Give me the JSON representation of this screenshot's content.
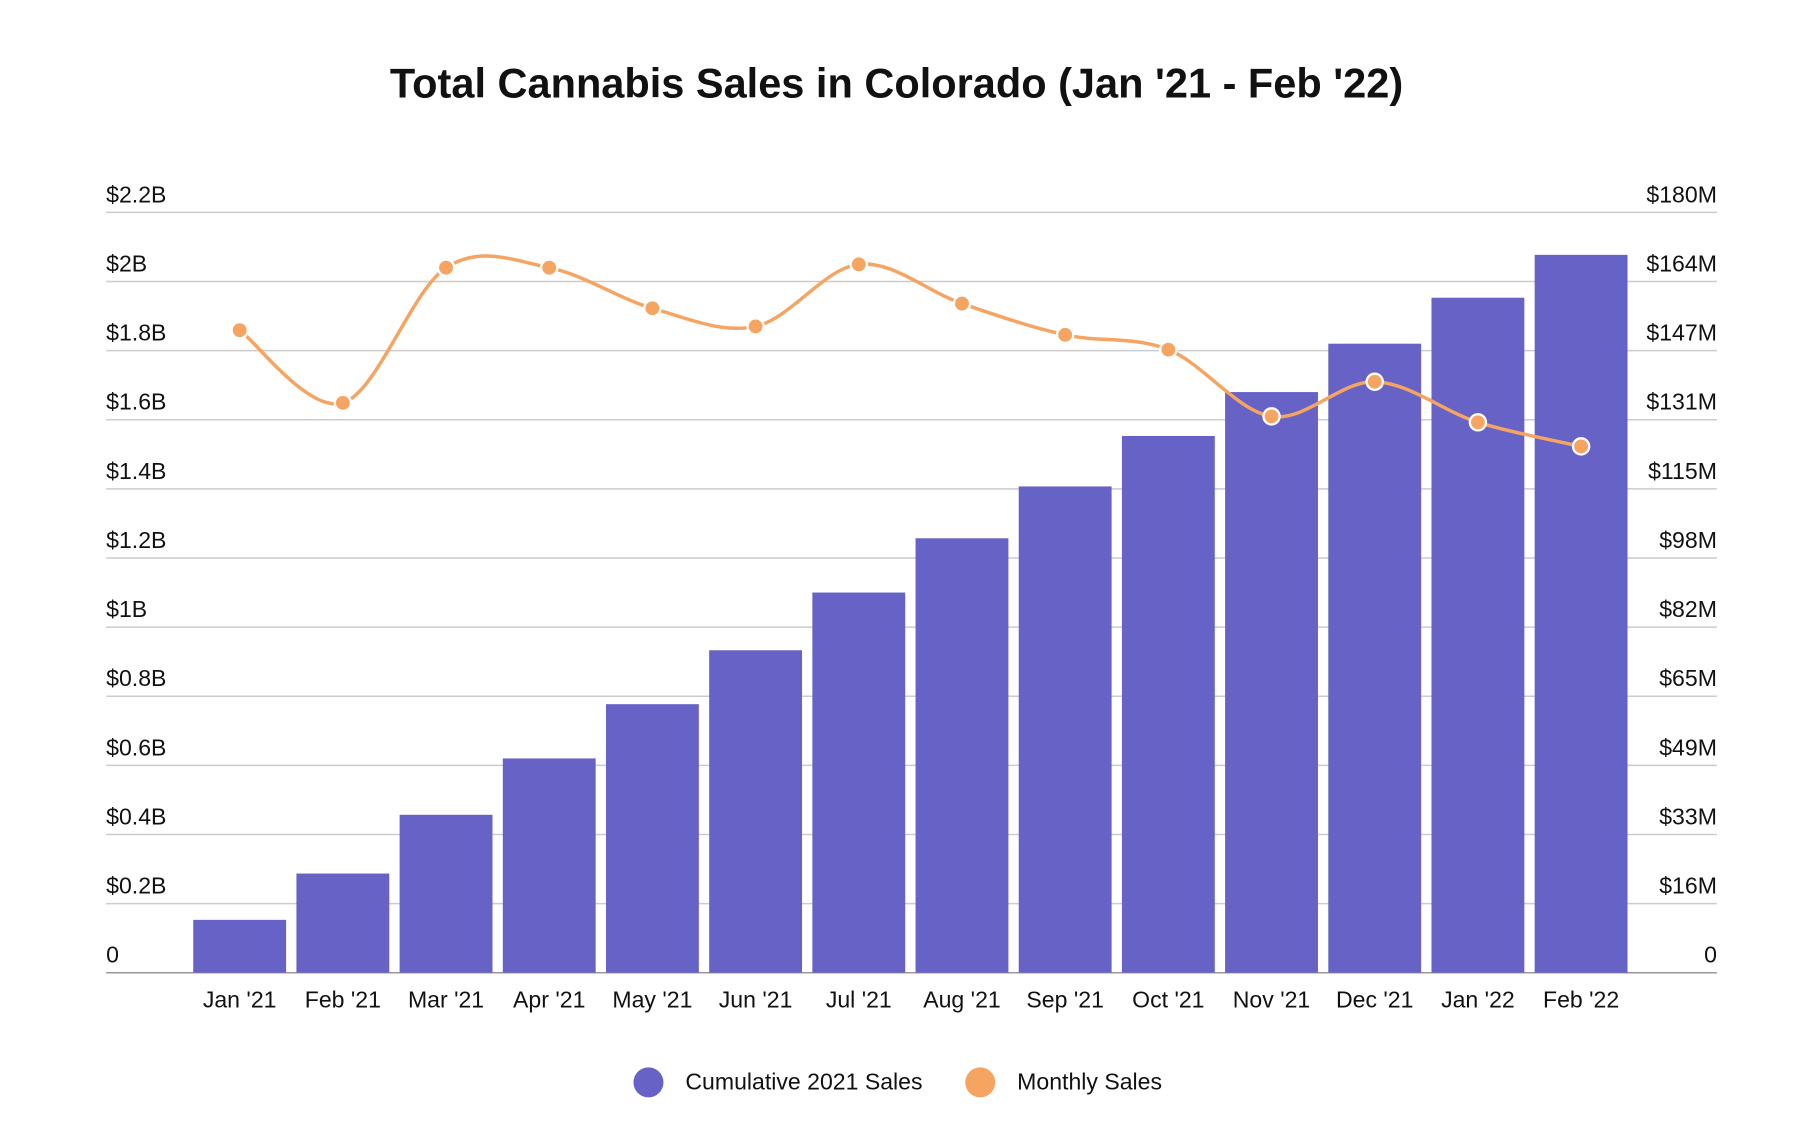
{
  "chart_data": {
    "type": "bar_line",
    "title": "Total Cannabis Sales in Colorado (Jan '21 - Feb '22)",
    "categories": [
      "Jan '21",
      "Feb '21",
      "Mar '21",
      "Apr '21",
      "May '21",
      "Jun '21",
      "Jul '21",
      "Aug '21",
      "Sep '21",
      "Oct '21",
      "Nov '21",
      "Dec '21",
      "Jan '22",
      "Feb '22"
    ],
    "series": [
      {
        "name": "Cumulative 2021 Sales",
        "type": "bar",
        "color": "#6762c6",
        "values": [
          153000000,
          287000000,
          457000000,
          620000000,
          777000000,
          933000000,
          1100000000,
          1257000000,
          1407000000,
          1553000000,
          1680000000,
          1820000000,
          1953000000,
          2077000000
        ]
      },
      {
        "name": "Monthly Sales",
        "type": "line",
        "axis": "y2",
        "color": "#f5a462",
        "values": [
          152100000,
          134900000,
          166900000,
          166900000,
          157300000,
          153000000,
          167700000,
          158400000,
          151000000,
          147500000,
          131700000,
          139900000,
          130300000,
          124600000
        ]
      }
    ],
    "ylim": [
      0,
      2200000000
    ],
    "yticks": [
      0,
      {
        "value": 200000000,
        "label": "$0.2B"
      },
      {
        "value": 400000000,
        "label": "$0.4B"
      },
      {
        "value": 600000000,
        "label": "$0.6B"
      },
      {
        "value": 800000000,
        "label": "$0.8B"
      },
      {
        "value": 1000000000,
        "label": "$1B"
      },
      {
        "value": 1200000000,
        "label": "$1.2B"
      },
      {
        "value": 1400000000,
        "label": "$1.4B"
      },
      {
        "value": 1600000000,
        "label": "$1.6B"
      },
      {
        "value": 1800000000,
        "label": "$1.8B"
      },
      {
        "value": 2000000000,
        "label": "$2B"
      },
      {
        "value": 2200000000,
        "label": "$2.2B"
      }
    ],
    "y2lim": [
      0,
      180000000
    ],
    "y2ticks": [
      0,
      {
        "value": 16363636,
        "label": "$16M"
      },
      {
        "value": 32727273,
        "label": "$33M"
      },
      {
        "value": 49090909,
        "label": "$49M"
      },
      {
        "value": 65454545,
        "label": "$65M"
      },
      {
        "value": 81818182,
        "label": "$82M"
      },
      {
        "value": 98181818,
        "label": "$98M"
      },
      {
        "value": 114545455,
        "label": "$115M"
      },
      {
        "value": 130909091,
        "label": "$131M"
      },
      {
        "value": 147272727,
        "label": "$147M"
      },
      {
        "value": 163636364,
        "label": "$164M"
      },
      {
        "value": 180000000,
        "label": "$180M"
      }
    ],
    "grid": true,
    "legend": "bottom"
  }
}
